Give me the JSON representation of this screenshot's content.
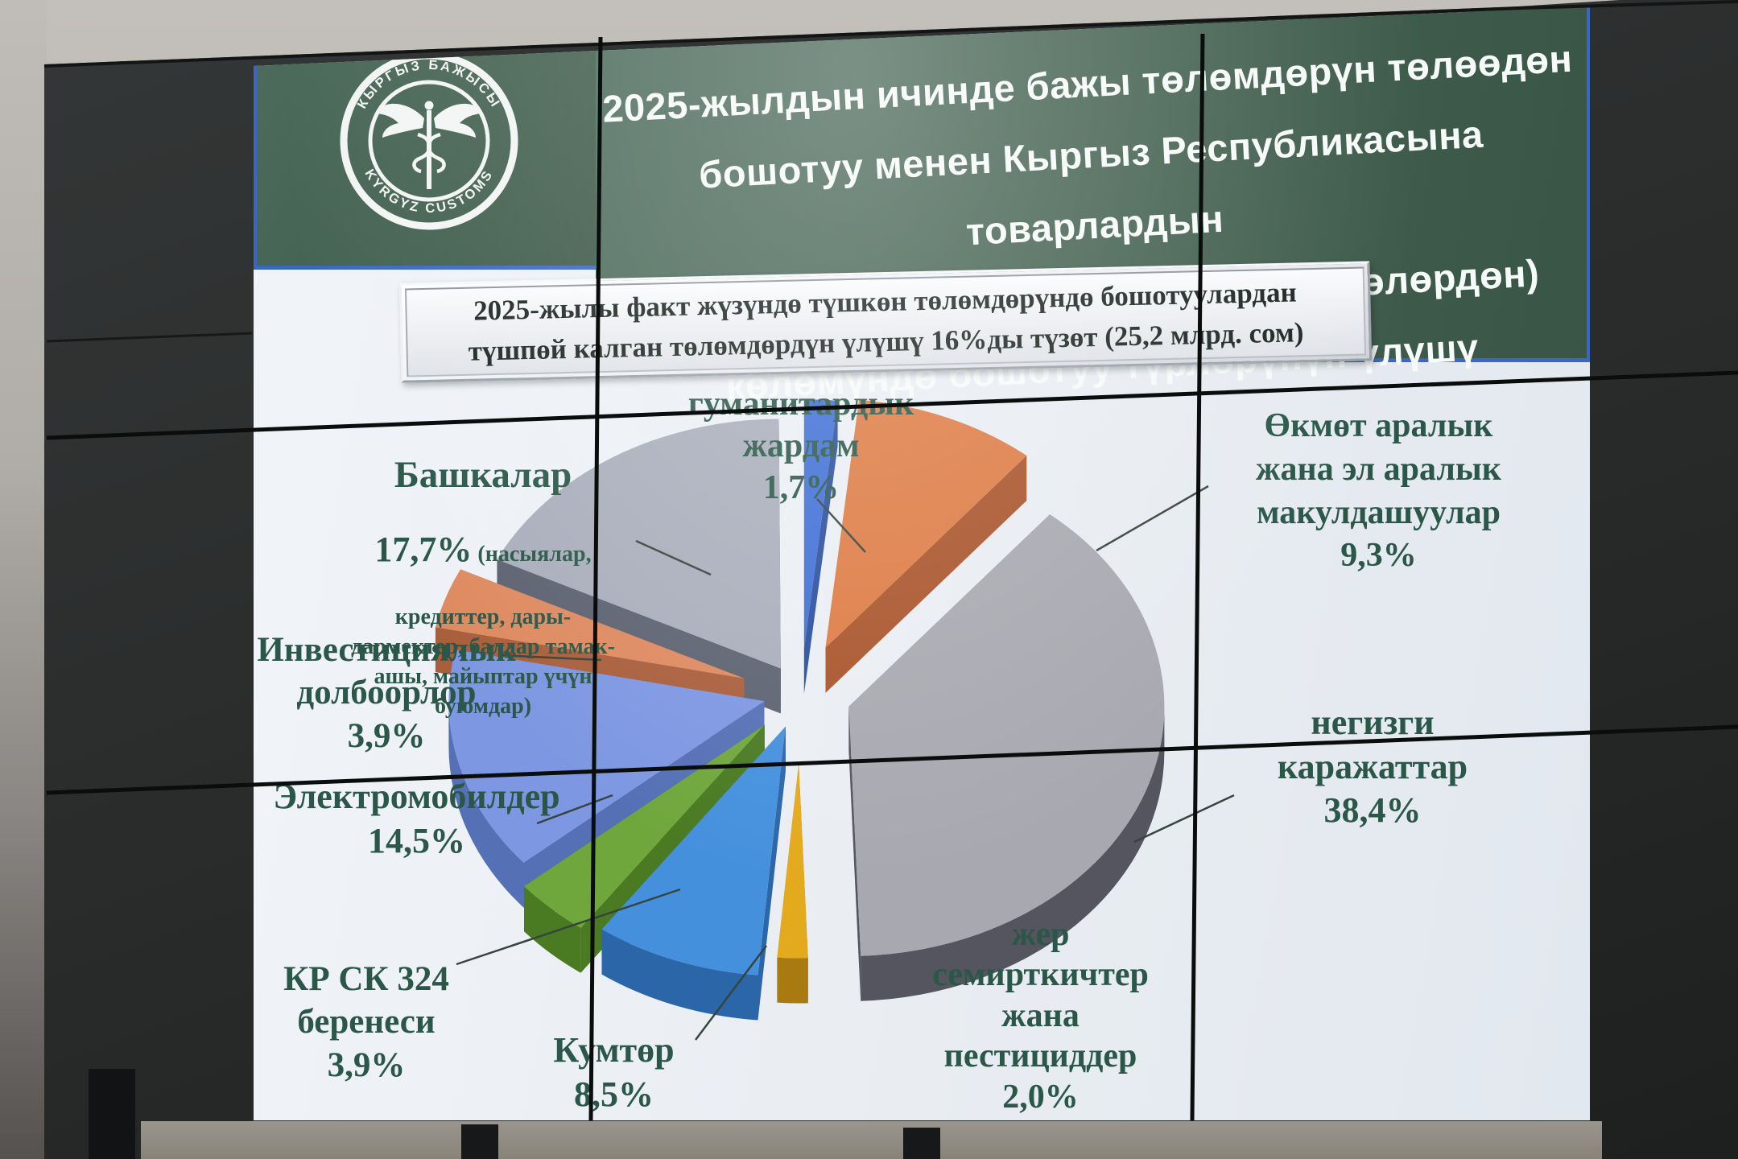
{
  "logo": {
    "top_text": "КЫРГЫЗ  БАЖЫСЫ",
    "bottom_text": "KYRGYZ  CUSTOMS",
    "icon": "caduceus-icon"
  },
  "header": {
    "title_lines": [
      "2025-жылдын ичинде бажы төлөмдөрүн төлөөдөн",
      "бошотуу менен Кыргыз Республикасына товарлардын",
      "бошотулган импортунун (үчүнчү өлкөлөрдөн)",
      "көлөмүндө бошотуу түрлөрүнүн үлүшү"
    ]
  },
  "subtitle": {
    "lines": [
      "2025-жылы факт жүзүндө түшкөн төлөмдөрүндө бошотуулардан",
      "түшпөй калган төлөмдөрдүн үлүшү 16%ды түзөт (25,2 млрд. сом)"
    ]
  },
  "chart_data": {
    "type": "pie",
    "title": "2025-жылдын ичинде бажы төлөмдөрүн төлөөдөн бошотуу менен Кыргыз Республикасына товарлардын бошотулган импортунун (үчүнчү өлкөлөрдөн) көлөмүндө бошотуу түрлөрүнүн үлүшү",
    "subtitle": "2025-жылы факт жүзүндө түшкөн төлөмдөрүндө бошотуулардан түшпөй калган төлөмдөрдүн үлүшү 16%ды түзөт (25,2 млрд. сом)",
    "unit": "%",
    "start_angle_deg": -90,
    "direction": "clockwise",
    "style": "3d-exploded",
    "slices": [
      {
        "id": "humanitarian",
        "label": "гуманитардык жардам",
        "pct": 1.7,
        "display": "1,7%",
        "color": "#3f6fd6",
        "side": "#2a4f9e",
        "explode": 0.18
      },
      {
        "id": "okmot",
        "label": "Өкмөт аралык жана эл аралык макулдашуулар",
        "pct": 9.3,
        "display": "9,3%",
        "color": "#de7b44",
        "side": "#a9542a",
        "explode": 0.2
      },
      {
        "id": "negizgi",
        "label": "негизги каражаттар",
        "pct": 38.4,
        "display": "38,4%",
        "color": "#a8a8b0",
        "side": "#54555f",
        "explode": 0.16
      },
      {
        "id": "jer",
        "label": "жер семирткичтер жана пестициддер",
        "pct": 2.0,
        "display": "2,0%",
        "color": "#e4aa1e",
        "side": "#a87a10",
        "explode": 0.28,
        "rscale": 0.78
      },
      {
        "id": "kumtor",
        "label": "Кумтөр",
        "pct": 8.5,
        "display": "8,5%",
        "color": "#4590dd",
        "side": "#2b66a8",
        "explode": 0.14
      },
      {
        "id": "krsk",
        "label": "КР СК 324 беренеси",
        "pct": 3.9,
        "display": "3,9%",
        "color": "#70a73d",
        "side": "#4a7a22",
        "explode": 0.17
      },
      {
        "id": "electro",
        "label": "Электромобилдер",
        "pct": 14.5,
        "display": "14,5%",
        "color": "#7d97e2",
        "side": "#5570b5",
        "explode": 0.12
      },
      {
        "id": "invest",
        "label": "Инвестициялык долбоорлор",
        "pct": 3.9,
        "display": "3,9%",
        "color": "#de8a60",
        "side": "#a95f3c",
        "explode": 0.19
      },
      {
        "id": "bashkalar",
        "label": "Башкалар (насыялар, кредиттер, дары-дармектер, балдар тамак-ашы, майыптар үчүн буюмдар)",
        "pct": 17.7,
        "display": "17,7%",
        "color": "#a9aebb",
        "side": "#5c6270",
        "explode": 0.12
      }
    ]
  },
  "labels": {
    "bashkalar": {
      "title": "Башкалар",
      "pct": "17,7%",
      "note_first": "(насыялар,",
      "note_rest": [
        "кредиттер, дары-",
        "дармектер, балдар тамак-",
        "ашы, майыптар үчүн",
        "буюмдар)"
      ]
    },
    "humanitarian": {
      "lines": [
        "гуманитардык",
        "жардам",
        "1,7%"
      ]
    },
    "okmot": {
      "lines": [
        "Өкмөт аралык",
        "жана эл аралык",
        "макулдашуулар",
        "9,3%"
      ]
    },
    "invest": {
      "lines": [
        "Инвестициялык",
        "долбоорлор",
        "3,9%"
      ]
    },
    "negizgi": {
      "lines": [
        "негизги",
        "каражаттар",
        "38,4%"
      ]
    },
    "electro": {
      "lines": [
        "Электромобилдер",
        "14,5%"
      ]
    },
    "krsk": {
      "lines": [
        "КР СК 324",
        "беренеси",
        "3,9%"
      ]
    },
    "kumtor": {
      "lines": [
        "Кумтөр",
        "8,5%"
      ]
    },
    "jer": {
      "lines": [
        "жер",
        "семирткичтер",
        "жана",
        "пестициддер",
        "2,0%"
      ]
    }
  },
  "colors": {
    "header_green": "#42604f",
    "accent_blue": "#3a66c4",
    "label_green": "#2a5748",
    "slide_bg": "#eaeef3",
    "wall_dark": "#2b2d2d"
  }
}
